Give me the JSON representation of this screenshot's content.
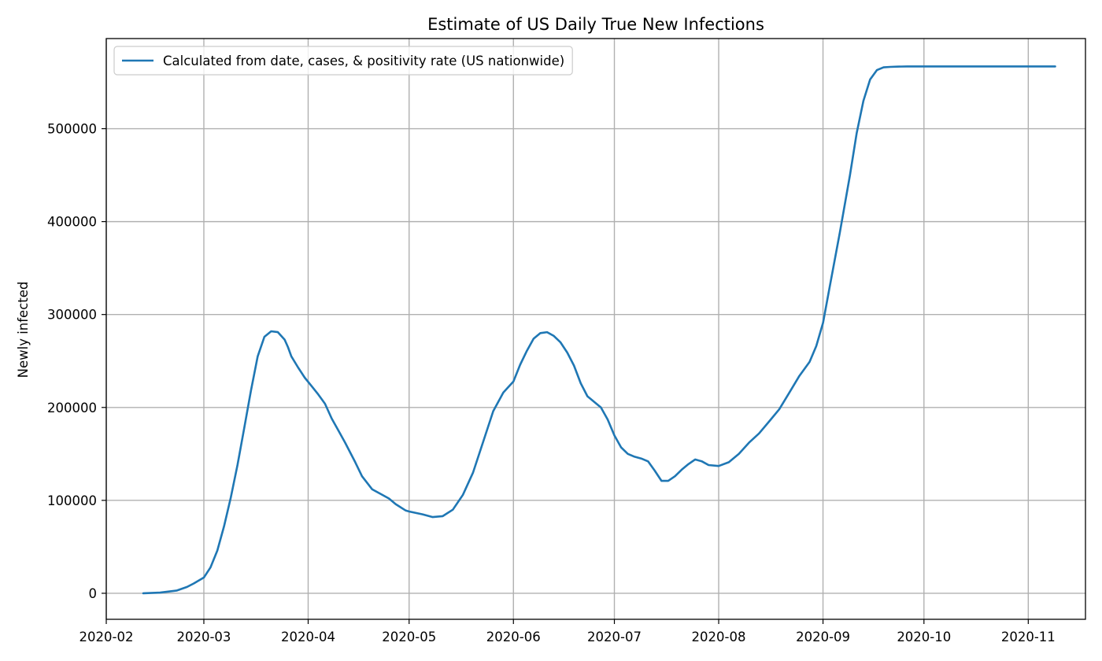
{
  "chart_data": {
    "type": "line",
    "title": "Estimate of US Daily True New Infections",
    "xlabel": "",
    "ylabel": "Newly infected",
    "x_type": "date",
    "xlim": [
      "2020-02-01",
      "2020-11-18"
    ],
    "ylim": [
      -28000,
      597000
    ],
    "x_ticks": [
      "2020-02-01",
      "2020-03-01",
      "2020-04-01",
      "2020-05-01",
      "2020-06-01",
      "2020-07-01",
      "2020-08-01",
      "2020-09-01",
      "2020-10-01",
      "2020-11-01"
    ],
    "x_tick_labels": [
      "2020-02",
      "2020-03",
      "2020-04",
      "2020-05",
      "2020-06",
      "2020-07",
      "2020-08",
      "2020-09",
      "2020-10",
      "2020-11"
    ],
    "y_ticks": [
      0,
      100000,
      200000,
      300000,
      400000,
      500000
    ],
    "y_tick_labels": [
      "0",
      "100000",
      "200000",
      "300000",
      "400000",
      "500000"
    ],
    "grid": true,
    "legend_position": "upper-left",
    "series": [
      {
        "name": "Calculated from date, cases, & positivity rate (US nationwide)",
        "color": "#1f77b4",
        "x": [
          "2020-02-12",
          "2020-02-17",
          "2020-02-22",
          "2020-02-25",
          "2020-02-27",
          "2020-03-01",
          "2020-03-03",
          "2020-03-05",
          "2020-03-07",
          "2020-03-09",
          "2020-03-11",
          "2020-03-13",
          "2020-03-15",
          "2020-03-17",
          "2020-03-19",
          "2020-03-21",
          "2020-03-23",
          "2020-03-25",
          "2020-03-26",
          "2020-03-27",
          "2020-03-29",
          "2020-03-31",
          "2020-04-02",
          "2020-04-04",
          "2020-04-06",
          "2020-04-08",
          "2020-04-10",
          "2020-04-12",
          "2020-04-15",
          "2020-04-17",
          "2020-04-20",
          "2020-04-23",
          "2020-04-25",
          "2020-04-27",
          "2020-04-30",
          "2020-05-01",
          "2020-05-05",
          "2020-05-08",
          "2020-05-11",
          "2020-05-14",
          "2020-05-17",
          "2020-05-20",
          "2020-05-23",
          "2020-05-26",
          "2020-05-29",
          "2020-06-01",
          "2020-06-03",
          "2020-06-05",
          "2020-06-07",
          "2020-06-09",
          "2020-06-11",
          "2020-06-13",
          "2020-06-15",
          "2020-06-17",
          "2020-06-19",
          "2020-06-21",
          "2020-06-23",
          "2020-06-25",
          "2020-06-27",
          "2020-06-29",
          "2020-07-01",
          "2020-07-03",
          "2020-07-05",
          "2020-07-07",
          "2020-07-09",
          "2020-07-11",
          "2020-07-13",
          "2020-07-15",
          "2020-07-17",
          "2020-07-19",
          "2020-07-21",
          "2020-07-23",
          "2020-07-25",
          "2020-07-27",
          "2020-07-29",
          "2020-08-01",
          "2020-08-04",
          "2020-08-07",
          "2020-08-10",
          "2020-08-13",
          "2020-08-16",
          "2020-08-19",
          "2020-08-22",
          "2020-08-25",
          "2020-08-28",
          "2020-08-30",
          "2020-09-01",
          "2020-09-03",
          "2020-09-06",
          "2020-09-09",
          "2020-09-11",
          "2020-09-13",
          "2020-09-15",
          "2020-09-17",
          "2020-09-19",
          "2020-09-21",
          "2020-09-23",
          "2020-09-26",
          "2020-09-29",
          "2020-10-02",
          "2020-10-05",
          "2020-10-07",
          "2020-10-09",
          "2020-10-11",
          "2020-10-13",
          "2020-10-15",
          "2020-10-17",
          "2020-10-19",
          "2020-10-21",
          "2020-10-23",
          "2020-10-25",
          "2020-10-27",
          "2020-10-29",
          "2020-10-31",
          "2020-11-01",
          "2020-11-03",
          "2020-11-05",
          "2020-11-07",
          "2020-11-08",
          "2020-11-09"
        ],
        "y": [
          0,
          700,
          3000,
          6800,
          10500,
          17000,
          28000,
          46000,
          72000,
          103000,
          138000,
          178000,
          218000,
          255000,
          276000,
          282000,
          281000,
          273000,
          265000,
          255000,
          243000,
          232000,
          223000,
          214000,
          204000,
          188000,
          175000,
          162000,
          141000,
          126000,
          112000,
          106000,
          102000,
          96000,
          89000,
          88000,
          85000,
          82000,
          83000,
          90000,
          106000,
          130000,
          163000,
          196000,
          216000,
          228000,
          246000,
          261000,
          274000,
          280000,
          281000,
          277000,
          270000,
          259000,
          245000,
          226000,
          212000,
          206000,
          200000,
          187000,
          170000,
          157000,
          150000,
          147000,
          145000,
          142000,
          132000,
          121000,
          121000,
          126000,
          133000,
          139000,
          144000,
          142000,
          138000,
          137000,
          141000,
          150000,
          162000,
          172000,
          185000,
          198000,
          216000,
          234000,
          249000,
          266000,
          291000,
          330000,
          388000,
          450000,
          495000,
          530000,
          553000,
          563000,
          566000,
          566500,
          566800,
          567000,
          567000,
          567000,
          567000,
          567000,
          567000,
          567000,
          567000,
          567000,
          567000,
          567000,
          567000,
          567000,
          567000,
          567000,
          567000,
          567000,
          567000,
          567000,
          567000,
          567000,
          567000,
          567000
        ]
      }
    ]
  }
}
